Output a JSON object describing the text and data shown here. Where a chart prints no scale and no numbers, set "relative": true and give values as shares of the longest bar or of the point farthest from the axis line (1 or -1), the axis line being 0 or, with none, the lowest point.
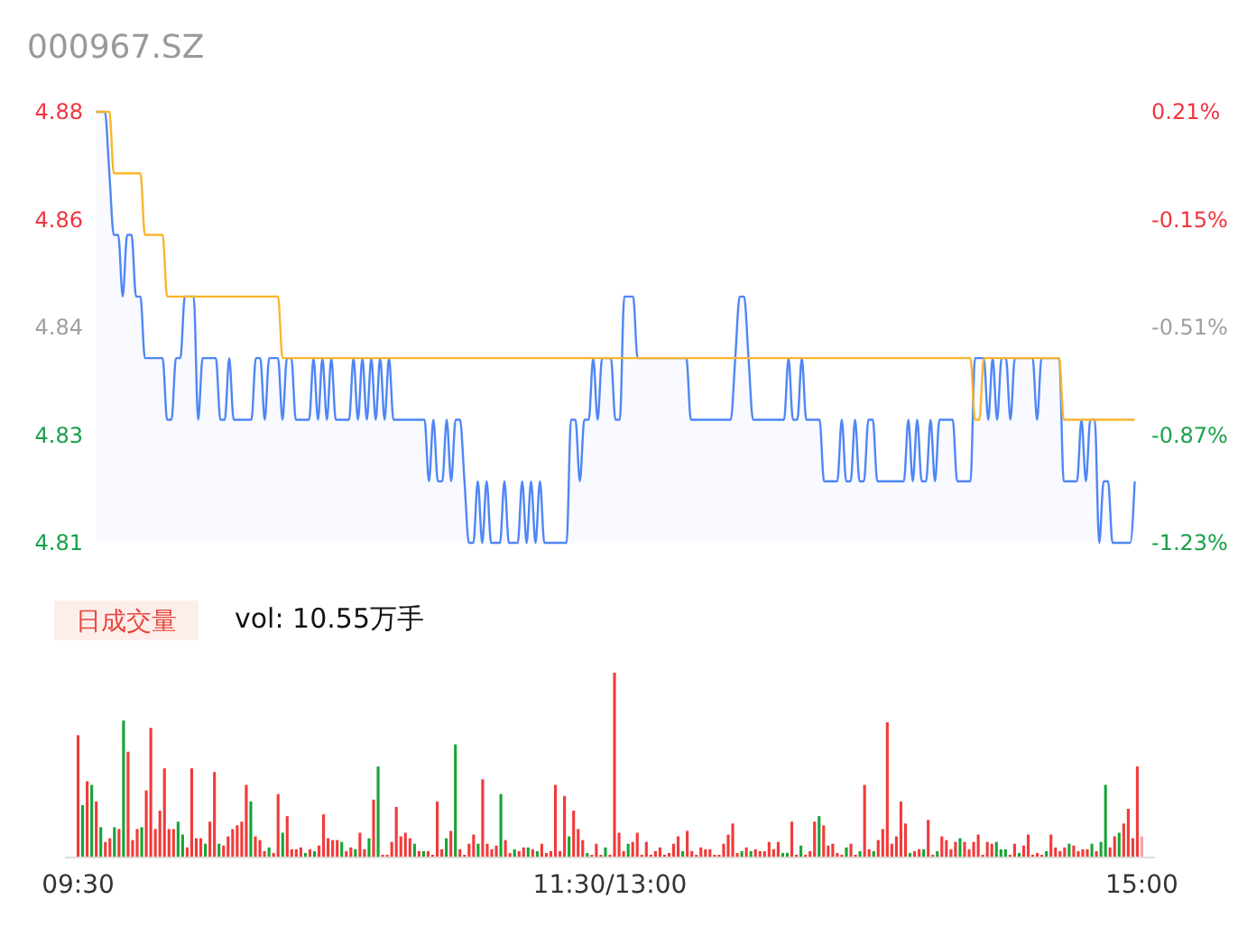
{
  "chart_data": [
    {
      "type": "line",
      "title": "000967.SZ",
      "ylim": [
        4.81,
        4.88
      ],
      "yticks": [
        4.88,
        {
          "value": 4.8625,
          "label": "4.86"
        },
        {
          "value": 4.845,
          "label": "4.84"
        },
        {
          "value": 4.8275,
          "label": "4.83"
        },
        4.81
      ],
      "y2lim": [
        -1.23,
        0.21
      ],
      "y2ticks": [
        {
          "value": 0.21,
          "label": "0.21%"
        },
        {
          "value": -0.15,
          "label": "-0.15%"
        },
        {
          "value": -0.51,
          "label": "-0.51%"
        },
        {
          "value": -0.87,
          "label": "-0.87%"
        },
        {
          "value": -1.23,
          "label": "-1.23%"
        }
      ],
      "tick_labels": "y",
      "categories": [
        null,
        null,
        null,
        null,
        null,
        null,
        null,
        null,
        null,
        null,
        null,
        null,
        null,
        null,
        null,
        null,
        null,
        null,
        null,
        null,
        null,
        null,
        null,
        null,
        null,
        null,
        null,
        null,
        null,
        null,
        null,
        null,
        null,
        null,
        null,
        null,
        null,
        null,
        null,
        null,
        null,
        null,
        null,
        null,
        null,
        null,
        null,
        null,
        null,
        null,
        null,
        null,
        null,
        null,
        null,
        null,
        null,
        null,
        null,
        null,
        null,
        null,
        null,
        null,
        null,
        null,
        null,
        null,
        null,
        null,
        null,
        null,
        null,
        null,
        null,
        null,
        null,
        null,
        null,
        null,
        null,
        null,
        null,
        null,
        null,
        null,
        null,
        null,
        null,
        null,
        null,
        null,
        null,
        null,
        null,
        null,
        null,
        null,
        null,
        null,
        null,
        null,
        null,
        null,
        null,
        null,
        null,
        null,
        null,
        null,
        null,
        null,
        null,
        null,
        null,
        null,
        null,
        null,
        null,
        null,
        null,
        null,
        null,
        null,
        null,
        null,
        null,
        null,
        null,
        null,
        null,
        null,
        null,
        null,
        null,
        null,
        null,
        null,
        null,
        null,
        null,
        null,
        null,
        null,
        null,
        null,
        null,
        null,
        null,
        null,
        null,
        null,
        null,
        null,
        null,
        null,
        null,
        null,
        null,
        null,
        null,
        null,
        null,
        null,
        null,
        null,
        null,
        null,
        null,
        null,
        null,
        null,
        null,
        null,
        null,
        null,
        null,
        null,
        null,
        null,
        null,
        null,
        null,
        null,
        null,
        null,
        null,
        null,
        null,
        null,
        null,
        null,
        null,
        null,
        null,
        null,
        null,
        null,
        null,
        null,
        null,
        null,
        null,
        null,
        null,
        null,
        null,
        null,
        null,
        null,
        null,
        null,
        null,
        null,
        null,
        null,
        null,
        null,
        null,
        null,
        null,
        null,
        null,
        null,
        null,
        null,
        null,
        null,
        null,
        null,
        null,
        null,
        null,
        null,
        null
      ],
      "series": [
        {
          "type": "area",
          "color": "#4f86f5",
          "values": [
            4.88,
            4.88,
            4.88,
            4.87,
            4.86,
            4.86,
            4.85,
            4.86,
            4.86,
            4.85,
            4.85,
            4.84,
            4.84,
            4.84,
            4.84,
            4.84,
            4.83,
            4.83,
            4.84,
            4.84,
            4.85,
            4.85,
            4.85,
            4.83,
            4.84,
            4.84,
            4.84,
            4.84,
            4.83,
            4.83,
            4.84,
            4.83,
            4.83,
            4.83,
            4.83,
            4.83,
            4.84,
            4.84,
            4.83,
            4.84,
            4.84,
            4.84,
            4.83,
            4.84,
            4.84,
            4.83,
            4.83,
            4.83,
            4.83,
            4.84,
            4.83,
            4.84,
            4.83,
            4.84,
            4.83,
            4.83,
            4.83,
            4.83,
            4.84,
            4.83,
            4.84,
            4.83,
            4.84,
            4.83,
            4.84,
            4.83,
            4.84,
            4.83,
            4.83,
            4.83,
            4.83,
            4.83,
            4.83,
            4.83,
            4.83,
            4.82,
            4.83,
            4.82,
            4.82,
            4.83,
            4.82,
            4.83,
            4.83,
            4.82,
            4.81,
            4.81,
            4.82,
            4.81,
            4.82,
            4.81,
            4.81,
            4.81,
            4.82,
            4.81,
            4.81,
            4.81,
            4.82,
            4.81,
            4.82,
            4.81,
            4.82,
            4.81,
            4.81,
            4.81,
            4.81,
            4.81,
            4.81,
            4.83,
            4.83,
            4.82,
            4.83,
            4.83,
            4.84,
            4.83,
            4.84,
            4.84,
            4.84,
            4.83,
            4.83,
            4.85,
            4.85,
            4.85,
            4.84,
            4.84,
            4.84,
            4.84,
            4.84,
            4.84,
            4.84,
            4.84,
            4.84,
            4.84,
            4.84,
            4.84,
            4.83,
            4.83,
            4.83,
            4.83,
            4.83,
            4.83,
            4.83,
            4.83,
            4.83,
            4.83,
            4.84,
            4.85,
            4.85,
            4.84,
            4.83,
            4.83,
            4.83,
            4.83,
            4.83,
            4.83,
            4.83,
            4.83,
            4.84,
            4.83,
            4.83,
            4.84,
            4.83,
            4.83,
            4.83,
            4.83,
            4.82,
            4.82,
            4.82,
            4.82,
            4.83,
            4.82,
            4.82,
            4.83,
            4.82,
            4.82,
            4.83,
            4.83,
            4.82,
            4.82,
            4.82,
            4.82,
            4.82,
            4.82,
            4.82,
            4.83,
            4.82,
            4.83,
            4.82,
            4.82,
            4.83,
            4.82,
            4.83,
            4.83,
            4.83,
            4.83,
            4.82,
            4.82,
            4.82,
            4.82,
            4.84,
            4.84,
            4.84,
            4.83,
            4.84,
            4.83,
            4.84,
            4.84,
            4.83,
            4.84,
            4.84,
            4.84,
            4.84,
            4.84,
            4.83,
            4.84,
            4.84,
            4.84,
            4.84,
            4.84,
            4.82,
            4.82,
            4.82,
            4.82,
            4.83,
            4.82,
            4.83,
            4.83,
            4.81,
            4.82,
            4.82,
            4.81,
            4.81,
            4.81,
            4.81,
            4.81,
            4.82
          ]
        },
        {
          "type": "line",
          "color": "#f9b52c",
          "values": [
            4.88,
            4.88,
            4.88,
            4.88,
            4.87,
            4.87,
            4.87,
            4.87,
            4.87,
            4.87,
            4.87,
            4.86,
            4.86,
            4.86,
            4.86,
            4.86,
            4.85,
            4.85,
            4.85,
            4.85,
            4.85,
            4.85,
            4.85,
            4.85,
            4.85,
            4.85,
            4.85,
            4.85,
            4.85,
            4.85,
            4.85,
            4.85,
            4.85,
            4.85,
            4.85,
            4.85,
            4.85,
            4.85,
            4.85,
            4.85,
            4.85,
            4.85,
            4.84,
            4.84,
            4.84,
            4.84,
            4.84,
            4.84,
            4.84,
            4.84,
            4.84,
            4.84,
            4.84,
            4.84,
            4.84,
            4.84,
            4.84,
            4.84,
            4.84,
            4.84,
            4.84,
            4.84,
            4.84,
            4.84,
            4.84,
            4.84,
            4.84,
            4.84,
            4.84,
            4.84,
            4.84,
            4.84,
            4.84,
            4.84,
            4.84,
            4.84,
            4.84,
            4.84,
            4.84,
            4.84,
            4.84,
            4.84,
            4.84,
            4.84,
            4.84,
            4.84,
            4.84,
            4.84,
            4.84,
            4.84,
            4.84,
            4.84,
            4.84,
            4.84,
            4.84,
            4.84,
            4.84,
            4.84,
            4.84,
            4.84,
            4.84,
            4.84,
            4.84,
            4.84,
            4.84,
            4.84,
            4.84,
            4.84,
            4.84,
            4.84,
            4.84,
            4.84,
            4.84,
            4.84,
            4.84,
            4.84,
            4.84,
            4.84,
            4.84,
            4.84,
            4.84,
            4.84,
            4.84,
            4.84,
            4.84,
            4.84,
            4.84,
            4.84,
            4.84,
            4.84,
            4.84,
            4.84,
            4.84,
            4.84,
            4.84,
            4.84,
            4.84,
            4.84,
            4.84,
            4.84,
            4.84,
            4.84,
            4.84,
            4.84,
            4.84,
            4.84,
            4.84,
            4.84,
            4.84,
            4.84,
            4.84,
            4.84,
            4.84,
            4.84,
            4.84,
            4.84,
            4.84,
            4.84,
            4.84,
            4.84,
            4.84,
            4.84,
            4.84,
            4.84,
            4.84,
            4.84,
            4.84,
            4.84,
            4.84,
            4.84,
            4.84,
            4.84,
            4.84,
            4.84,
            4.84,
            4.84,
            4.84,
            4.84,
            4.84,
            4.84,
            4.84,
            4.84,
            4.84,
            4.84,
            4.84,
            4.84,
            4.84,
            4.84,
            4.84,
            4.84,
            4.84,
            4.84,
            4.84,
            4.84,
            4.84,
            4.84,
            4.84,
            4.84,
            4.83,
            4.83,
            4.84,
            4.84,
            4.84,
            4.84,
            4.84,
            4.84,
            4.84,
            4.84,
            4.84,
            4.84,
            4.84,
            4.84,
            4.84,
            4.84,
            4.84,
            4.84,
            4.84,
            4.84,
            4.83,
            4.83,
            4.83,
            4.83,
            4.83,
            4.83,
            4.83,
            4.83,
            4.83,
            4.83,
            4.83,
            4.83,
            4.83,
            4.83,
            4.83,
            4.83,
            4.83
          ]
        }
      ]
    },
    {
      "type": "bar",
      "title": "日成交量",
      "subtitle": "vol: 10.55万手",
      "relative": true,
      "categories": [
        "09:30",
        null,
        null,
        null,
        null,
        null,
        null,
        null,
        null,
        null,
        null,
        null,
        null,
        null,
        null,
        null,
        null,
        null,
        null,
        null,
        null,
        null,
        null,
        null,
        null,
        null,
        null,
        null,
        null,
        null,
        null,
        null,
        null,
        null,
        null,
        null,
        null,
        null,
        null,
        null,
        null,
        null,
        null,
        null,
        null,
        null,
        null,
        null,
        null,
        null,
        null,
        null,
        null,
        null,
        null,
        null,
        null,
        null,
        null,
        null,
        null,
        null,
        null,
        null,
        null,
        null,
        null,
        null,
        null,
        null,
        null,
        null,
        null,
        null,
        null,
        null,
        null,
        null,
        null,
        null,
        null,
        null,
        null,
        null,
        null,
        null,
        null,
        null,
        null,
        null,
        null,
        null,
        null,
        null,
        null,
        null,
        null,
        null,
        null,
        null,
        null,
        null,
        null,
        null,
        null,
        null,
        null,
        null,
        null,
        null,
        null,
        null,
        null,
        null,
        null,
        null,
        null,
        "11:30/13:00",
        null,
        null,
        null,
        null,
        null,
        null,
        null,
        null,
        null,
        null,
        null,
        null,
        null,
        null,
        null,
        null,
        null,
        null,
        null,
        null,
        null,
        null,
        null,
        null,
        null,
        null,
        null,
        null,
        null,
        null,
        null,
        null,
        null,
        null,
        null,
        null,
        null,
        null,
        null,
        null,
        null,
        null,
        null,
        null,
        null,
        null,
        null,
        null,
        null,
        null,
        null,
        null,
        null,
        null,
        null,
        null,
        null,
        null,
        null,
        null,
        null,
        null,
        null,
        null,
        null,
        null,
        null,
        null,
        null,
        null,
        null,
        null,
        null,
        null,
        null,
        null,
        null,
        null,
        null,
        null,
        null,
        null,
        null,
        null,
        null,
        null,
        null,
        null,
        null,
        null,
        null,
        null,
        null,
        null,
        null,
        null,
        null,
        null,
        null,
        null,
        null,
        null,
        null,
        null,
        null,
        null,
        null,
        null,
        null,
        null,
        null,
        null,
        null,
        null,
        null,
        null,
        "15:00"
      ],
      "values": [
        0.66,
        0.28,
        0.41,
        0.39,
        0.3,
        0.16,
        0.08,
        0.1,
        0.16,
        0.15,
        0.74,
        0.57,
        0.09,
        0.15,
        0.16,
        0.36,
        0.7,
        0.15,
        0.25,
        0.48,
        0.15,
        0.15,
        0.19,
        0.12,
        0.05,
        0.48,
        0.1,
        0.1,
        0.07,
        0.19,
        0.46,
        0.07,
        0.06,
        0.11,
        0.15,
        0.17,
        0.19,
        0.39,
        0.3,
        0.11,
        0.09,
        0.03,
        0.05,
        0.02,
        0.34,
        0.13,
        0.22,
        0.04,
        0.04,
        0.05,
        0.02,
        0.04,
        0.03,
        0.06,
        0.23,
        0.1,
        0.09,
        0.09,
        0.08,
        0.03,
        0.05,
        0.04,
        0.13,
        0.04,
        0.1,
        0.31,
        0.49,
        0.01,
        0.01,
        0.08,
        0.27,
        0.11,
        0.13,
        0.1,
        0.07,
        0.03,
        0.03,
        0.03,
        0.01,
        0.3,
        0.04,
        0.1,
        0.14,
        0.61,
        0.04,
        0.01,
        0.07,
        0.12,
        0.07,
        0.42,
        0.07,
        0.04,
        0.06,
        0.34,
        0.09,
        0.02,
        0.04,
        0.03,
        0.05,
        0.05,
        0.04,
        0.03,
        0.07,
        0.02,
        0.03,
        0.39,
        0.03,
        0.33,
        0.11,
        0.25,
        0.15,
        0.09,
        0.02,
        0.01,
        0.07,
        0.01,
        0.05,
        0.01,
        1,
        0.13,
        0.03,
        0.07,
        0.08,
        0.13,
        0.01,
        0.08,
        0.01,
        0.03,
        0.05,
        0.01,
        0.02,
        0.07,
        0.11,
        0.03,
        0.14,
        0.03,
        0.01,
        0.05,
        0.04,
        0.04,
        0.01,
        0.01,
        0.07,
        0.12,
        0.18,
        0.02,
        0.03,
        0.05,
        0.03,
        0.04,
        0.03,
        0.03,
        0.08,
        0.04,
        0.08,
        0.02,
        0.02,
        0.19,
        0.01,
        0.06,
        0.01,
        0.03,
        0.19,
        0.22,
        0.17,
        0.06,
        0.07,
        0.02,
        0.01,
        0.05,
        0.07,
        0.01,
        0.03,
        0.39,
        0.04,
        0.03,
        0.09,
        0.15,
        0.73,
        0.07,
        0.11,
        0.3,
        0.18,
        0.02,
        0.03,
        0.04,
        0.04,
        0.2,
        0.01,
        0.03,
        0.11,
        0.09,
        0.04,
        0.08,
        0.1,
        0.08,
        0.04,
        0.08,
        0.12,
        0.01,
        0.08,
        0.07,
        0.08,
        0.04,
        0.04,
        0.01,
        0.07,
        0.02,
        0.06,
        0.12,
        0.01,
        0.02,
        0.01,
        0.03,
        0.12,
        0.05,
        0.03,
        0.05,
        0.07,
        0.06,
        0.03,
        0.04,
        0.04,
        0.07,
        0.03,
        0.08,
        0.39,
        0.05,
        0.11,
        0.13,
        0.18,
        0.26,
        0.1,
        0.49,
        0.11
      ],
      "colors": [
        "#f23a3a",
        "#17a536",
        "#f23a3a",
        "#17a536",
        "#f23a3a",
        "#17a536",
        "#f23a3a",
        "#f23a3a",
        "#17a536",
        "#f23a3a",
        "#17a536",
        "#f23a3a",
        "#f23a3a",
        "#f23a3a",
        "#17a536",
        "#f23a3a",
        "#f23a3a",
        "#f23a3a",
        "#f23a3a",
        "#f23a3a",
        "#f23a3a",
        "#f23a3a",
        "#17a536",
        "#17a536",
        "#f23a3a",
        "#f23a3a",
        "#f23a3a",
        "#f23a3a",
        "#17a536",
        "#f23a3a",
        "#f23a3a",
        "#17a536",
        "#f23a3a",
        "#f23a3a",
        "#f23a3a",
        "#f23a3a",
        "#f23a3a",
        "#f23a3a",
        "#17a536",
        "#f23a3a",
        "#f23a3a",
        "#f23a3a",
        "#17a536",
        "#f23a3a",
        "#f23a3a",
        "#17a536",
        "#f23a3a",
        "#f23a3a",
        "#f23a3a",
        "#f23a3a",
        "#17a536",
        "#f23a3a",
        "#17a536",
        "#f23a3a",
        "#f23a3a",
        "#f23a3a",
        "#f23a3a",
        "#f23a3a",
        "#17a536",
        "#f23a3a",
        "#f23a3a",
        "#17a536",
        "#f23a3a",
        "#f23a3a",
        "#17a536",
        "#f23a3a",
        "#17a536",
        "#f23a3a",
        "#f23a3a",
        "#f23a3a",
        "#f23a3a",
        "#f23a3a",
        "#f23a3a",
        "#f23a3a",
        "#17a536",
        "#f23a3a",
        "#17a536",
        "#f23a3a",
        "#f23a3a",
        "#f23a3a",
        "#f23a3a",
        "#17a536",
        "#f23a3a",
        "#17a536",
        "#f23a3a",
        "#f23a3a",
        "#f23a3a",
        "#f23a3a",
        "#17a536",
        "#f23a3a",
        "#f23a3a",
        "#f23a3a",
        "#f23a3a",
        "#17a536",
        "#f23a3a",
        "#f23a3a",
        "#17a536",
        "#f23a3a",
        "#f23a3a",
        "#17a536",
        "#f23a3a",
        "#17a536",
        "#f23a3a",
        "#f23a3a",
        "#f23a3a",
        "#f23a3a",
        "#f23a3a",
        "#f23a3a",
        "#17a536",
        "#f23a3a",
        "#f23a3a",
        "#f23a3a",
        "#17a536",
        "#f23a3a",
        "#f23a3a",
        "#f23a3a",
        "#17a536",
        "#f23a3a",
        "#f23a3a",
        "#f23a3a",
        "#f23a3a",
        "#17a536",
        "#f23a3a",
        "#f23a3a",
        "#f23a3a",
        "#f23a3a",
        "#f23a3a",
        "#f23a3a",
        "#f23a3a",
        "#f23a3a",
        "#f23a3a",
        "#f23a3a",
        "#f23a3a",
        "#17a536",
        "#f23a3a",
        "#f23a3a",
        "#f23a3a",
        "#f23a3a",
        "#f23a3a",
        "#f23a3a",
        "#f23a3a",
        "#f23a3a",
        "#f23a3a",
        "#f23a3a",
        "#f23a3a",
        "#f23a3a",
        "#17a536",
        "#f23a3a",
        "#17a536",
        "#f23a3a",
        "#f23a3a",
        "#f23a3a",
        "#f23a3a",
        "#f23a3a",
        "#f23a3a",
        "#17a536",
        "#17a536",
        "#f23a3a",
        "#f23a3a",
        "#17a536",
        "#f23a3a",
        "#f23a3a",
        "#f23a3a",
        "#17a536",
        "#f23a3a",
        "#f23a3a",
        "#f23a3a",
        "#f23a3a",
        "#f23a3a",
        "#17a536",
        "#f23a3a",
        "#f23a3a",
        "#17a536",
        "#f23a3a",
        "#f23a3a",
        "#17a536",
        "#f23a3a",
        "#f23a3a",
        "#f23a3a",
        "#f23a3a",
        "#f23a3a",
        "#f23a3a",
        "#f23a3a",
        "#17a536",
        "#f23a3a",
        "#f23a3a",
        "#17a536",
        "#f23a3a",
        "#f23a3a",
        "#17a536",
        "#f23a3a",
        "#f23a3a",
        "#f23a3a",
        "#f23a3a",
        "#17a536",
        "#f23a3a",
        "#f23a3a",
        "#f23a3a",
        "#f23a3a",
        "#f23a3a",
        "#f23a3a",
        "#f23a3a",
        "#17a536",
        "#17a536",
        "#17a536",
        "#f23a3a",
        "#f23a3a",
        "#17a536",
        "#f23a3a",
        "#f23a3a",
        "#f23a3a",
        "#f23a3a",
        "#f23a3a",
        "#17a536",
        "#f23a3a",
        "#f23a3a",
        "#f23a3a",
        "#f23a3a",
        "#17a536",
        "#f23a3a",
        "#f23a3a",
        "#f23a3a",
        "#f23a3a",
        "#17a536",
        "#f23a3a",
        "#17a536",
        "#17a536",
        "#f23a3a",
        "#f23a3a",
        "#17a536",
        "#f23a3a",
        "#f23a3a",
        "#f23a3a",
        "#f23a3a",
        "#ffa1a9"
      ]
    }
  ]
}
